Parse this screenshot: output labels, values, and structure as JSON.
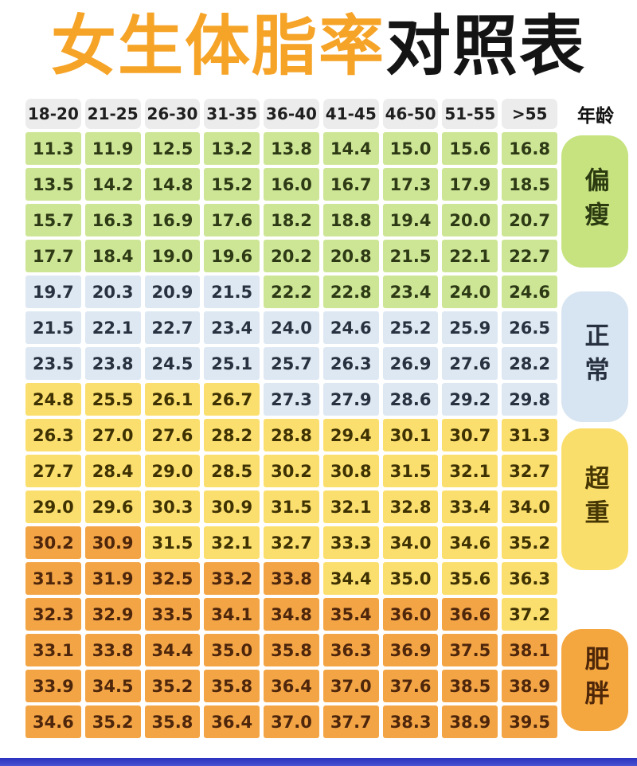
{
  "title": {
    "highlight": "女生体脂率",
    "rest": "对照表",
    "highlight_color": "#f6a428",
    "rest_color": "#141414"
  },
  "header": {
    "age_label": "年龄",
    "age_columns": [
      "18-20",
      "21-25",
      "26-30",
      "31-35",
      "36-40",
      "41-45",
      "46-50",
      "51-55",
      ">55"
    ]
  },
  "categories": [
    {
      "label": "偏瘦",
      "color": "#c6e380"
    },
    {
      "label": "正常",
      "color": "#d7e4f1"
    },
    {
      "label": "超重",
      "color": "#fade6b"
    },
    {
      "label": "肥胖",
      "color": "#f4a63f"
    }
  ],
  "cell_colors": {
    "g": "#cde695",
    "b": "#dde8f3",
    "y": "#fbdf6e",
    "o": "#f3a546"
  },
  "footer_bar_color": "#2c33bf",
  "chart_data": {
    "type": "table",
    "title": "女生体脂率对照表",
    "column_group_label": "年龄",
    "columns": [
      "18-20",
      "21-25",
      "26-30",
      "31-35",
      "36-40",
      "41-45",
      "46-50",
      "51-55",
      ">55"
    ],
    "legend": [
      {
        "category": "偏瘦",
        "color_key": "g"
      },
      {
        "category": "正常",
        "color_key": "b"
      },
      {
        "category": "超重",
        "color_key": "y"
      },
      {
        "category": "肥胖",
        "color_key": "o"
      }
    ],
    "rows": [
      [
        "11.3",
        "11.9",
        "12.5",
        "13.2",
        "13.8",
        "14.4",
        "15.0",
        "15.6",
        "16.8"
      ],
      [
        "13.5",
        "14.2",
        "14.8",
        "15.2",
        "16.0",
        "16.7",
        "17.3",
        "17.9",
        "18.5"
      ],
      [
        "15.7",
        "16.3",
        "16.9",
        "17.6",
        "18.2",
        "18.8",
        "19.4",
        "20.0",
        "20.7"
      ],
      [
        "17.7",
        "18.4",
        "19.0",
        "19.6",
        "20.2",
        "20.8",
        "21.5",
        "22.1",
        "22.7"
      ],
      [
        "19.7",
        "20.3",
        "20.9",
        "21.5",
        "22.2",
        "22.8",
        "23.4",
        "24.0",
        "24.6"
      ],
      [
        "21.5",
        "22.1",
        "22.7",
        "23.4",
        "24.0",
        "24.6",
        "25.2",
        "25.9",
        "26.5"
      ],
      [
        "23.5",
        "23.8",
        "24.5",
        "25.1",
        "25.7",
        "26.3",
        "26.9",
        "27.6",
        "28.2"
      ],
      [
        "24.8",
        "25.5",
        "26.1",
        "26.7",
        "27.3",
        "27.9",
        "28.6",
        "29.2",
        "29.8"
      ],
      [
        "26.3",
        "27.0",
        "27.6",
        "28.2",
        "28.8",
        "29.4",
        "30.1",
        "30.7",
        "31.3"
      ],
      [
        "27.7",
        "28.4",
        "29.0",
        "28.5",
        "30.2",
        "30.8",
        "31.5",
        "32.1",
        "32.7"
      ],
      [
        "29.0",
        "29.6",
        "30.3",
        "30.9",
        "31.5",
        "32.1",
        "32.8",
        "33.4",
        "34.0"
      ],
      [
        "30.2",
        "30.9",
        "31.5",
        "32.1",
        "32.7",
        "33.3",
        "34.0",
        "34.6",
        "35.2"
      ],
      [
        "31.3",
        "31.9",
        "32.5",
        "33.2",
        "33.8",
        "34.4",
        "35.0",
        "35.6",
        "36.3"
      ],
      [
        "32.3",
        "32.9",
        "33.5",
        "34.1",
        "34.8",
        "35.4",
        "36.0",
        "36.6",
        "37.2"
      ],
      [
        "33.1",
        "33.8",
        "34.4",
        "35.0",
        "35.8",
        "36.3",
        "36.9",
        "37.5",
        "38.1"
      ],
      [
        "33.9",
        "34.5",
        "35.2",
        "35.8",
        "36.4",
        "37.0",
        "37.6",
        "38.5",
        "38.9"
      ],
      [
        "34.6",
        "35.2",
        "35.8",
        "36.4",
        "37.0",
        "37.7",
        "38.3",
        "38.9",
        "39.5"
      ]
    ],
    "cell_categories": [
      "ggggggggg",
      "ggggggggg",
      "ggggggggg",
      "ggggggggg",
      "bbbbggggg",
      "bbbbbbbbb",
      "bbbbbbbbb",
      "yyyybbbbb",
      "yyyyyyyyy",
      "yyyyyyyyy",
      "yyyyyyyyy",
      "ooyyyyyyy",
      "oooooyyyy",
      "ooooooooy",
      "ooooooooo",
      "ooooooooo",
      "ooooooooo"
    ]
  }
}
